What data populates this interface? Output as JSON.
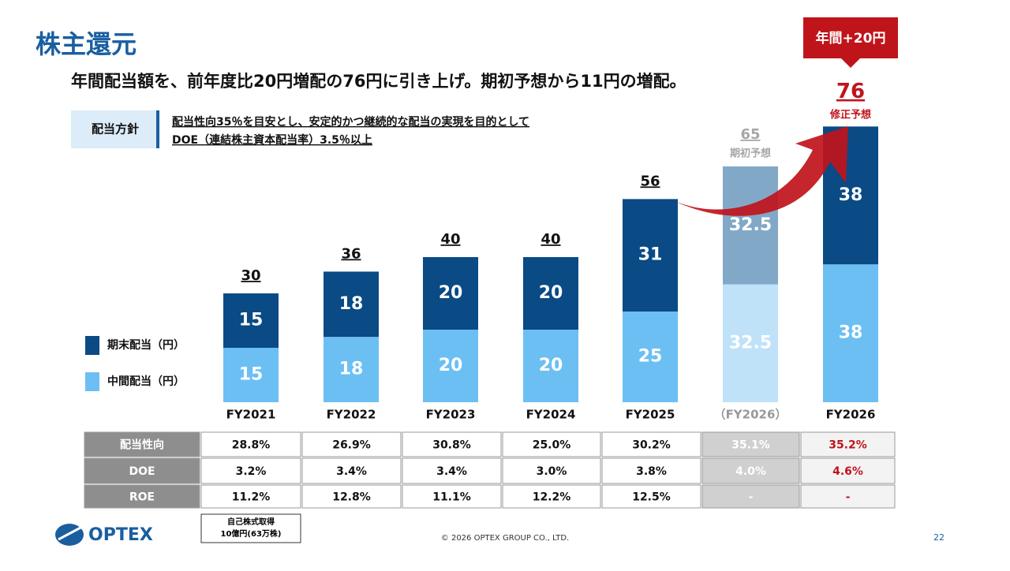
{
  "header": {
    "title": "株主還元",
    "subtitle": "年間配当額を、前年度比20円増配の76円に引き上げ。期初予想から11円の増配。"
  },
  "policy": {
    "label": "配当方針",
    "lines": [
      "配当性向35％を目安とし、安定的かつ継続的な配当の実現を目的として",
      "DOE（連結株主資本配当率）3.5％以上"
    ]
  },
  "chart_data": {
    "type": "stacked-bar",
    "categories": [
      "FY2021",
      "FY2022",
      "FY2023",
      "FY2024",
      "FY2025",
      "（FY2026）",
      "FY2026"
    ],
    "series": [
      {
        "name": "中間配当（円）",
        "color": "#6cbff3",
        "colors": [
          "#6cbff3",
          "#6cbff3",
          "#6cbff3",
          "#6cbff3",
          "#6cbff3",
          "#bfe2f9",
          "#6cbff3"
        ],
        "values": [
          15,
          18,
          20,
          20,
          25,
          32.5,
          38
        ]
      },
      {
        "name": "期末配当（円）",
        "color": "#0a4a85",
        "colors": [
          "#0a4a85",
          "#0a4a85",
          "#0a4a85",
          "#0a4a85",
          "#0a4a85",
          "#82a8c8",
          "#0a4a85"
        ],
        "values": [
          15,
          18,
          20,
          20,
          31,
          32.5,
          38
        ]
      }
    ],
    "totals": [
      30,
      36,
      40,
      40,
      56,
      65,
      76
    ],
    "total_colors": [
      "#111",
      "#111",
      "#111",
      "#111",
      "#111",
      "#a6a6a6",
      "#c0141b"
    ],
    "ylim": [
      0,
      80
    ],
    "forecast_note": "期初予想",
    "revised_note": "修正予想",
    "change_callout": "年間+20円"
  },
  "table": {
    "rows": [
      [
        "配当性向",
        "28.8%",
        "26.9%",
        "30.8%",
        "25.0%",
        "30.2%",
        "35.1%",
        "35.2%"
      ],
      [
        "DOE",
        "3.2%",
        "3.4%",
        "3.4%",
        "3.0%",
        "3.8%",
        "4.0%",
        "4.6%"
      ],
      [
        "ROE",
        "11.2%",
        "12.8%",
        "11.1%",
        "12.2%",
        "12.5%",
        "-",
        "-"
      ]
    ]
  },
  "footer": {
    "buyback": [
      "自己株式取得",
      "10億円(63万株)"
    ],
    "logo": "OPTEX",
    "copyright": "© 2026 OPTEX GROUP CO., LTD.",
    "page": "22"
  }
}
